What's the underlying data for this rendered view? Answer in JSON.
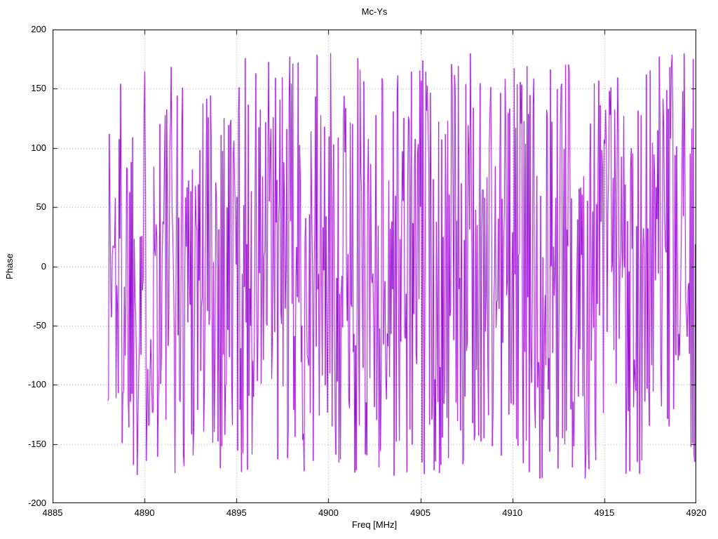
{
  "chart_data": {
    "type": "line",
    "title": "Mc-Ys",
    "xlabel": "Freq [MHz]",
    "ylabel": "Phase",
    "xlim": [
      4885,
      4920
    ],
    "ylim": [
      -200,
      200
    ],
    "x_ticks": [
      4885,
      4890,
      4895,
      4900,
      4905,
      4910,
      4915,
      4920
    ],
    "y_ticks": [
      -200,
      -150,
      -100,
      -50,
      0,
      50,
      100,
      150,
      200
    ],
    "grid": true,
    "grid_style": "dotted",
    "grid_color": "#9a9a9a",
    "legend_position": "none",
    "series": [
      {
        "name": "Mc-Ys",
        "color": "#9400d3",
        "line_width": 1,
        "x_start": 4888,
        "x_end": 4920,
        "n_points": 780,
        "y_min": -180,
        "y_max": 180,
        "distribution": "fully wrapped interferometric phase noise; values uniformly distributed between -180 and +180 degrees across 4888-4920 MHz",
        "seed": 1337
      }
    ]
  },
  "frame": {
    "background": "#ffffff",
    "border_color": "#000000",
    "text_color": "#000000"
  }
}
